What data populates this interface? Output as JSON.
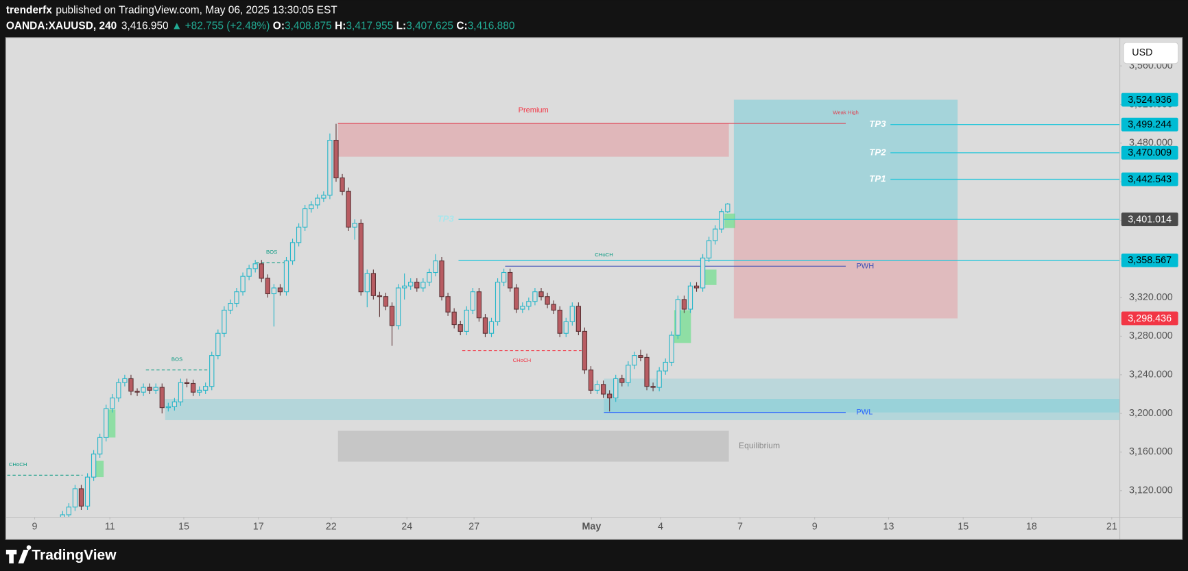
{
  "header": {
    "author": "trenderfx",
    "published": "published on TradingView.com, May 06, 2025 13:30:05 EST",
    "symbol": "OANDA:XAUUSD, 240",
    "last": "3,416.950",
    "change": "▲ +82.755 (+2.48%)",
    "ohlc": [
      {
        "key": "O:",
        "value": "3,408.875"
      },
      {
        "key": "H:",
        "value": "3,417.955"
      },
      {
        "key": "L:",
        "value": "3,407.625"
      },
      {
        "key": "C:",
        "value": "3,416.880"
      }
    ]
  },
  "currency": "USD",
  "brand": "TradingView",
  "chart_data": {
    "type": "candlestick",
    "up_color": "#26b6c9",
    "down_color": "#b85c62",
    "grid": false,
    "xlim": [
      -9.1,
      170.1
    ],
    "ylim": [
      3092.5,
      3589
    ],
    "xticks": [
      {
        "value": -4.5,
        "label": "9"
      },
      {
        "value": 7.6,
        "label": "11"
      },
      {
        "value": 19.5,
        "label": "15"
      },
      {
        "value": 31.5,
        "label": "17"
      },
      {
        "value": 43.2,
        "label": "22"
      },
      {
        "value": 55.4,
        "label": "24"
      },
      {
        "value": 66.2,
        "label": "27"
      },
      {
        "value": 85.1,
        "label": "May"
      },
      {
        "value": 96.2,
        "label": "4"
      },
      {
        "value": 109,
        "label": "7"
      },
      {
        "value": 121,
        "label": "9"
      },
      {
        "value": 132.9,
        "label": "13"
      },
      {
        "value": 144.9,
        "label": "15"
      },
      {
        "value": 155.9,
        "label": "18"
      },
      {
        "value": 168.8,
        "label": "21"
      }
    ],
    "yticks": [
      {
        "value": 3120,
        "label": "3,120.000"
      },
      {
        "value": 3160,
        "label": "3,160.000"
      },
      {
        "value": 3200,
        "label": "3,200.000"
      },
      {
        "value": 3240,
        "label": "3,240.000"
      },
      {
        "value": 3280,
        "label": "3,280.000"
      },
      {
        "value": 3320,
        "label": "3,320.000"
      },
      {
        "value": 3360,
        "label": "3,360.000"
      },
      {
        "value": 3400,
        "label": "3,400.000"
      },
      {
        "value": 3440,
        "label": "3,440.000"
      },
      {
        "value": 3480,
        "label": "3,480.000"
      },
      {
        "value": 3520,
        "label": "3,520.000"
      },
      {
        "value": 3560,
        "label": "3,560.000"
      }
    ],
    "ohlc": [
      [
        3090,
        3099,
        3086,
        3095
      ],
      [
        3095,
        3107,
        3091,
        3103
      ],
      [
        3103,
        3126,
        3099,
        3122
      ],
      [
        3122,
        3126,
        3100,
        3104
      ],
      [
        3104,
        3138,
        3100,
        3134
      ],
      [
        3134,
        3162,
        3130,
        3158
      ],
      [
        3158,
        3179,
        3154,
        3175
      ],
      [
        3175,
        3209,
        3171,
        3205
      ],
      [
        3205,
        3220,
        3201,
        3216
      ],
      [
        3216,
        3236,
        3212,
        3232
      ],
      [
        3232,
        3240,
        3228,
        3236
      ],
      [
        3236,
        3240,
        3219,
        3223
      ],
      [
        3223,
        3226,
        3218,
        3222
      ],
      [
        3222,
        3231,
        3218,
        3227
      ],
      [
        3227,
        3231,
        3220,
        3224
      ],
      [
        3224,
        3231,
        3220,
        3227
      ],
      [
        3227,
        3231,
        3200,
        3206
      ],
      [
        3206,
        3211,
        3202,
        3207
      ],
      [
        3207,
        3216,
        3203,
        3212
      ],
      [
        3212,
        3236,
        3208,
        3232
      ],
      [
        3232,
        3236,
        3227,
        3231
      ],
      [
        3231,
        3235,
        3218,
        3222
      ],
      [
        3222,
        3228,
        3218,
        3224
      ],
      [
        3224,
        3232,
        3220,
        3228
      ],
      [
        3228,
        3264,
        3224,
        3260
      ],
      [
        3260,
        3287,
        3256,
        3283
      ],
      [
        3283,
        3311,
        3279,
        3307
      ],
      [
        3307,
        3318,
        3303,
        3314
      ],
      [
        3314,
        3330,
        3310,
        3326
      ],
      [
        3326,
        3346,
        3322,
        3342
      ],
      [
        3342,
        3354,
        3338,
        3350
      ],
      [
        3350,
        3359,
        3346,
        3355
      ],
      [
        3355,
        3359,
        3336,
        3340
      ],
      [
        3340,
        3344,
        3320,
        3324
      ],
      [
        3324,
        3334,
        3290,
        3330
      ],
      [
        3330,
        3334,
        3322,
        3326
      ],
      [
        3326,
        3362,
        3322,
        3358
      ],
      [
        3358,
        3381,
        3354,
        3377
      ],
      [
        3377,
        3397,
        3373,
        3393
      ],
      [
        3393,
        3416,
        3389,
        3412
      ],
      [
        3412,
        3420,
        3408,
        3416
      ],
      [
        3416,
        3427,
        3412,
        3423
      ],
      [
        3423,
        3430,
        3419,
        3426
      ],
      [
        3426,
        3490,
        3422,
        3483
      ],
      [
        3483,
        3500,
        3440,
        3444
      ],
      [
        3444,
        3448,
        3426,
        3430
      ],
      [
        3430,
        3434,
        3389,
        3393
      ],
      [
        3393,
        3401,
        3380,
        3397
      ],
      [
        3397,
        3401,
        3322,
        3326
      ],
      [
        3326,
        3349,
        3310,
        3345
      ],
      [
        3345,
        3349,
        3318,
        3322
      ],
      [
        3322,
        3326,
        3300,
        3321
      ],
      [
        3321,
        3325,
        3307,
        3311
      ],
      [
        3311,
        3315,
        3270,
        3291
      ],
      [
        3291,
        3334,
        3287,
        3330
      ],
      [
        3330,
        3345,
        3318,
        3332
      ],
      [
        3332,
        3340,
        3328,
        3336
      ],
      [
        3336,
        3340,
        3326,
        3330
      ],
      [
        3330,
        3340,
        3326,
        3336
      ],
      [
        3336,
        3350,
        3332,
        3346
      ],
      [
        3346,
        3365,
        3342,
        3358
      ],
      [
        3358,
        3362,
        3317,
        3321
      ],
      [
        3321,
        3325,
        3301,
        3305
      ],
      [
        3305,
        3309,
        3288,
        3292
      ],
      [
        3292,
        3296,
        3281,
        3285
      ],
      [
        3285,
        3311,
        3281,
        3307
      ],
      [
        3307,
        3330,
        3303,
        3326
      ],
      [
        3326,
        3330,
        3295,
        3299
      ],
      [
        3299,
        3303,
        3279,
        3283
      ],
      [
        3283,
        3299,
        3279,
        3295
      ],
      [
        3295,
        3340,
        3291,
        3336
      ],
      [
        3336,
        3350,
        3332,
        3346
      ],
      [
        3346,
        3350,
        3326,
        3330
      ],
      [
        3330,
        3334,
        3304,
        3308
      ],
      [
        3308,
        3315,
        3304,
        3311
      ],
      [
        3311,
        3320,
        3307,
        3316
      ],
      [
        3316,
        3330,
        3312,
        3326
      ],
      [
        3326,
        3330,
        3317,
        3321
      ],
      [
        3321,
        3325,
        3309,
        3313
      ],
      [
        3313,
        3317,
        3303,
        3307
      ],
      [
        3307,
        3311,
        3279,
        3283
      ],
      [
        3283,
        3299,
        3279,
        3295
      ],
      [
        3295,
        3315,
        3291,
        3311
      ],
      [
        3311,
        3315,
        3281,
        3285
      ],
      [
        3285,
        3289,
        3241,
        3245
      ],
      [
        3245,
        3249,
        3220,
        3224
      ],
      [
        3224,
        3234,
        3220,
        3230
      ],
      [
        3230,
        3234,
        3216,
        3220
      ],
      [
        3220,
        3224,
        3202,
        3216
      ],
      [
        3216,
        3240,
        3212,
        3236
      ],
      [
        3236,
        3240,
        3228,
        3232
      ],
      [
        3232,
        3254,
        3228,
        3250
      ],
      [
        3250,
        3264,
        3246,
        3260
      ],
      [
        3260,
        3266,
        3254,
        3258
      ],
      [
        3258,
        3262,
        3224,
        3228
      ],
      [
        3228,
        3232,
        3223,
        3227
      ],
      [
        3227,
        3248,
        3223,
        3244
      ],
      [
        3244,
        3257,
        3240,
        3253
      ],
      [
        3253,
        3285,
        3249,
        3281
      ],
      [
        3281,
        3322,
        3277,
        3318
      ],
      [
        3318,
        3322,
        3304,
        3308
      ],
      [
        3308,
        3336,
        3304,
        3332
      ],
      [
        3332,
        3336,
        3326,
        3330
      ],
      [
        3330,
        3365,
        3326,
        3361
      ],
      [
        3361,
        3383,
        3357,
        3379
      ],
      [
        3379,
        3395,
        3375,
        3391
      ],
      [
        3391,
        3412,
        3387,
        3409
      ],
      [
        3408.875,
        3417.955,
        3407.625,
        3416.88
      ]
    ],
    "drawings": [
      {
        "kind": "zone",
        "x": [
          16.5,
          170.1
        ],
        "y": [
          3193,
          3215
        ],
        "color": "#00bcd4",
        "opacity": 0.18
      },
      {
        "kind": "zone",
        "x": [
          87.1,
          170.1
        ],
        "y": [
          3201,
          3236
        ],
        "color": "#00bcd4",
        "opacity": 0.15
      },
      {
        "kind": "zone",
        "x": [
          44.3,
          107.2
        ],
        "y": [
          3150,
          3182
        ],
        "color": "#9e9e9e",
        "opacity": 0.35,
        "label": "Equilibrium",
        "label_at": "right"
      },
      {
        "kind": "zone",
        "x": [
          44.3,
          107.2
        ],
        "y": [
          3465.9,
          3500.4
        ],
        "color": "#f23645",
        "opacity": 0.22,
        "label": "Premium",
        "label_at": "top"
      },
      {
        "kind": "zone",
        "x": [
          108,
          144
        ],
        "y": [
          3401.014,
          3524.936
        ],
        "color": "#00bcd4",
        "opacity": 0.25
      },
      {
        "kind": "zone",
        "x": [
          108,
          144
        ],
        "y": [
          3298.436,
          3401.014
        ],
        "color": "#f23645",
        "opacity": 0.2
      },
      {
        "kind": "zone",
        "x": [
          5.2,
          6.6
        ],
        "y": [
          3134,
          3151
        ],
        "color": "#5be07f",
        "opacity": 0.6
      },
      {
        "kind": "zone",
        "x": [
          6.6,
          8.5
        ],
        "y": [
          3175,
          3204
        ],
        "color": "#5be07f",
        "opacity": 0.6
      },
      {
        "kind": "zone",
        "x": [
          98.4,
          101.1
        ],
        "y": [
          3273,
          3307
        ],
        "color": "#5be07f",
        "opacity": 0.6
      },
      {
        "kind": "zone",
        "x": [
          103.3,
          105.2
        ],
        "y": [
          3333,
          3349
        ],
        "color": "#5be07f",
        "opacity": 0.6
      },
      {
        "kind": "zone",
        "x": [
          106.5,
          108.2
        ],
        "y": [
          3392,
          3407
        ],
        "color": "#5be07f",
        "opacity": 0.6
      },
      {
        "kind": "line",
        "x": [
          44.3,
          126
        ],
        "y": 3500.4,
        "color": "#e04050",
        "label": "Weak High",
        "label_at": "end-above"
      },
      {
        "kind": "line",
        "x": [
          71.2,
          126
        ],
        "y": 3352.5,
        "color": "#3f51b5",
        "label": "PWH",
        "label_at": "end"
      },
      {
        "kind": "line",
        "x": [
          87.1,
          126
        ],
        "y": 3201,
        "color": "#2962ff",
        "label": "PWL",
        "label_at": "end"
      },
      {
        "kind": "dashed",
        "x": [
          31.1,
          36.2
        ],
        "y": 3356,
        "color": "#089981",
        "label": "BOS",
        "label_at": "above"
      },
      {
        "kind": "dashed",
        "x": [
          13.4,
          23.4
        ],
        "y": 3245,
        "color": "#089981",
        "label": "BOS",
        "label_at": "above"
      },
      {
        "kind": "dashed",
        "x": [
          -8.9,
          3.2
        ],
        "y": 3136,
        "color": "#089981",
        "label": "CHoCH",
        "label_at": "above-start"
      },
      {
        "kind": "dashed",
        "x": [
          64.3,
          83.5
        ],
        "y": 3265,
        "color": "#f23645",
        "label": "CHoCH",
        "label_at": "below"
      },
      {
        "kind": "text",
        "x": 87.1,
        "y": 3364,
        "color": "#089981",
        "label": "CHoCH"
      }
    ],
    "levels": [
      {
        "value": 3524.936,
        "label": "3,524.936",
        "color": "#00bcd4",
        "text_color": "#000000"
      },
      {
        "value": 3499.244,
        "label": "3,499.244",
        "color": "#00bcd4",
        "text_color": "#000000",
        "line_color": "#26c6da",
        "line_from": 133.2,
        "tag": "TP3",
        "tag_color": "#ffffff"
      },
      {
        "value": 3470.009,
        "label": "3,470.009",
        "color": "#00bcd4",
        "text_color": "#000000",
        "line_color": "#26c6da",
        "line_from": 133.2,
        "tag": "TP2",
        "tag_color": "#ffffff"
      },
      {
        "value": 3442.543,
        "label": "3,442.543",
        "color": "#00bcd4",
        "text_color": "#000000",
        "line_color": "#26c6da",
        "line_from": 133.2,
        "tag": "TP1",
        "tag_color": "#ffffff"
      },
      {
        "value": 3401.014,
        "label": "3,401.014",
        "color": "#4a4a4a",
        "text_color": "#ffffff",
        "line_color": "#26c6da",
        "line_from": 63.7,
        "tag": "TP3",
        "tag_color": "#a8e6ec"
      },
      {
        "value": 3358.567,
        "label": "3,358.567",
        "color": "#00bcd4",
        "text_color": "#000000",
        "line_color": "#26c6da",
        "line_from": 63.7
      },
      {
        "value": 3298.436,
        "label": "3,298.436",
        "color": "#f23645",
        "text_color": "#ffffff"
      }
    ]
  }
}
